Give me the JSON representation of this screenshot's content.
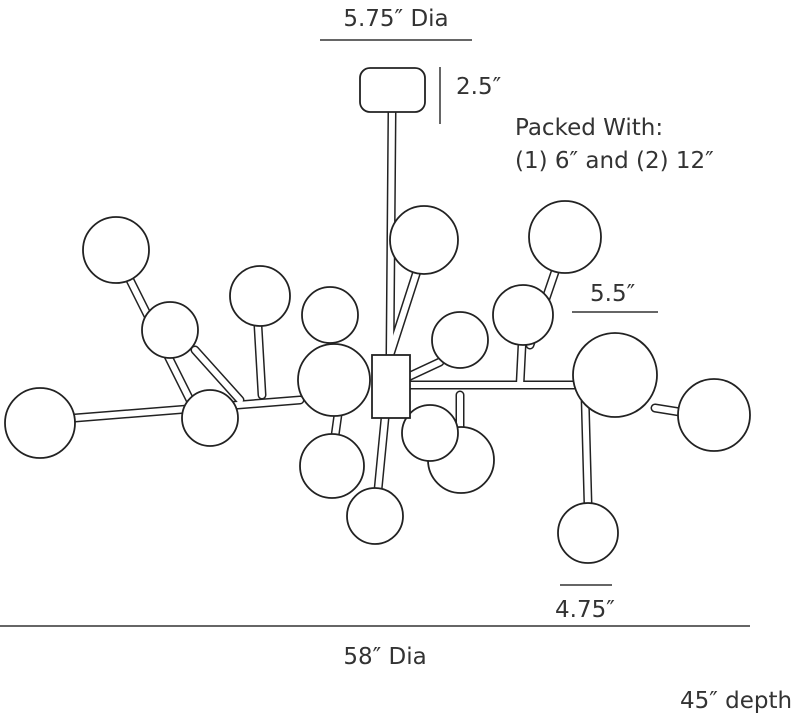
{
  "dimensions": {
    "canopy_diameter": "5.75″ Dia",
    "canopy_height": "2.5″",
    "globe_large": "5.5″",
    "globe_small": "4.75″",
    "overall_diameter": "58″ Dia",
    "depth": "45″ depth"
  },
  "notes": {
    "packed_title": "Packed With:",
    "packed_items": "(1) 6″ and (2) 12″"
  }
}
